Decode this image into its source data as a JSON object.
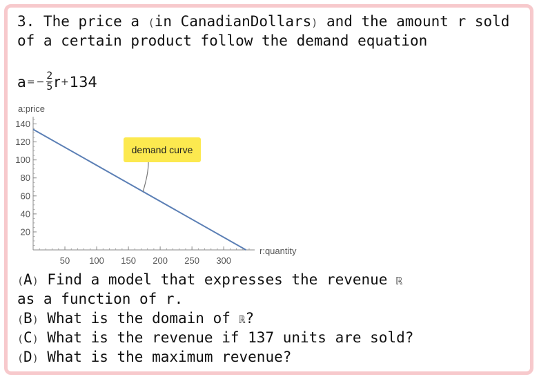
{
  "problem": {
    "line1_a": "3. The price a ",
    "line1_paren_open": "(",
    "line1_b": "in CanadianDollars",
    "line1_paren_close": ")",
    "line1_c": " and the amount r sold",
    "line2": "of a certain product follow the demand equation",
    "equation": {
      "lhs": "a",
      "equals": "=",
      "minus": "−",
      "numerator": "2",
      "denominator": "5",
      "variable": "r",
      "plus": "+",
      "constant": "134"
    }
  },
  "chart_data": {
    "type": "line",
    "ylabel": "a:price",
    "xlabel": "r:quantity",
    "xlim": [
      0,
      340
    ],
    "ylim": [
      0,
      145
    ],
    "xticks": [
      50,
      100,
      150,
      200,
      250,
      300
    ],
    "yticks": [
      20,
      40,
      60,
      80,
      100,
      120,
      140
    ],
    "series": [
      {
        "x": [
          0,
          335
        ],
        "y": [
          134,
          0
        ],
        "color": "#5b7fb5"
      }
    ],
    "annotation": {
      "text": "demand curve",
      "x": 173,
      "y": 64.8,
      "background": "#fce94f"
    }
  },
  "questions": {
    "a": {
      "open": "(",
      "letter": "A",
      "close": ")",
      "text": " Find a model that expresses the revenue ",
      "symbol": "ℝ"
    },
    "a2": "as a function of r.",
    "b": {
      "open": "(",
      "letter": "B",
      "close": ")",
      "text": " What is the domain of ",
      "symbol": "ℝ",
      "end": "?"
    },
    "c": {
      "open": "(",
      "letter": "C",
      "close": ")",
      "text": " What is the revenue if 137 units are sold?"
    },
    "d": {
      "open": "(",
      "letter": "D",
      "close": ")",
      "text": " What is the maximum revenue?"
    }
  },
  "colors": {
    "border": "#f7c9cc",
    "line": "#5b7fb5",
    "callout": "#fce94f"
  }
}
